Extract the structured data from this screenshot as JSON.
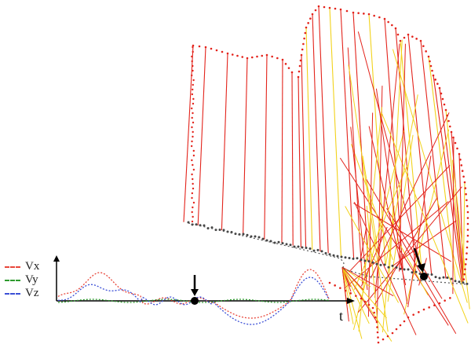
{
  "legend": [
    {
      "label": "Vx",
      "color": "#e8463a"
    },
    {
      "label": "Vy",
      "color": "#2e9a2e"
    },
    {
      "label": "Vz",
      "color": "#3b4fd6"
    }
  ],
  "time_axis_label": "t",
  "colors": {
    "stroke_primary": "#e3231b",
    "stroke_secondary": "#f2d21b",
    "trajectory": "#444444",
    "marker": "#000000"
  }
}
